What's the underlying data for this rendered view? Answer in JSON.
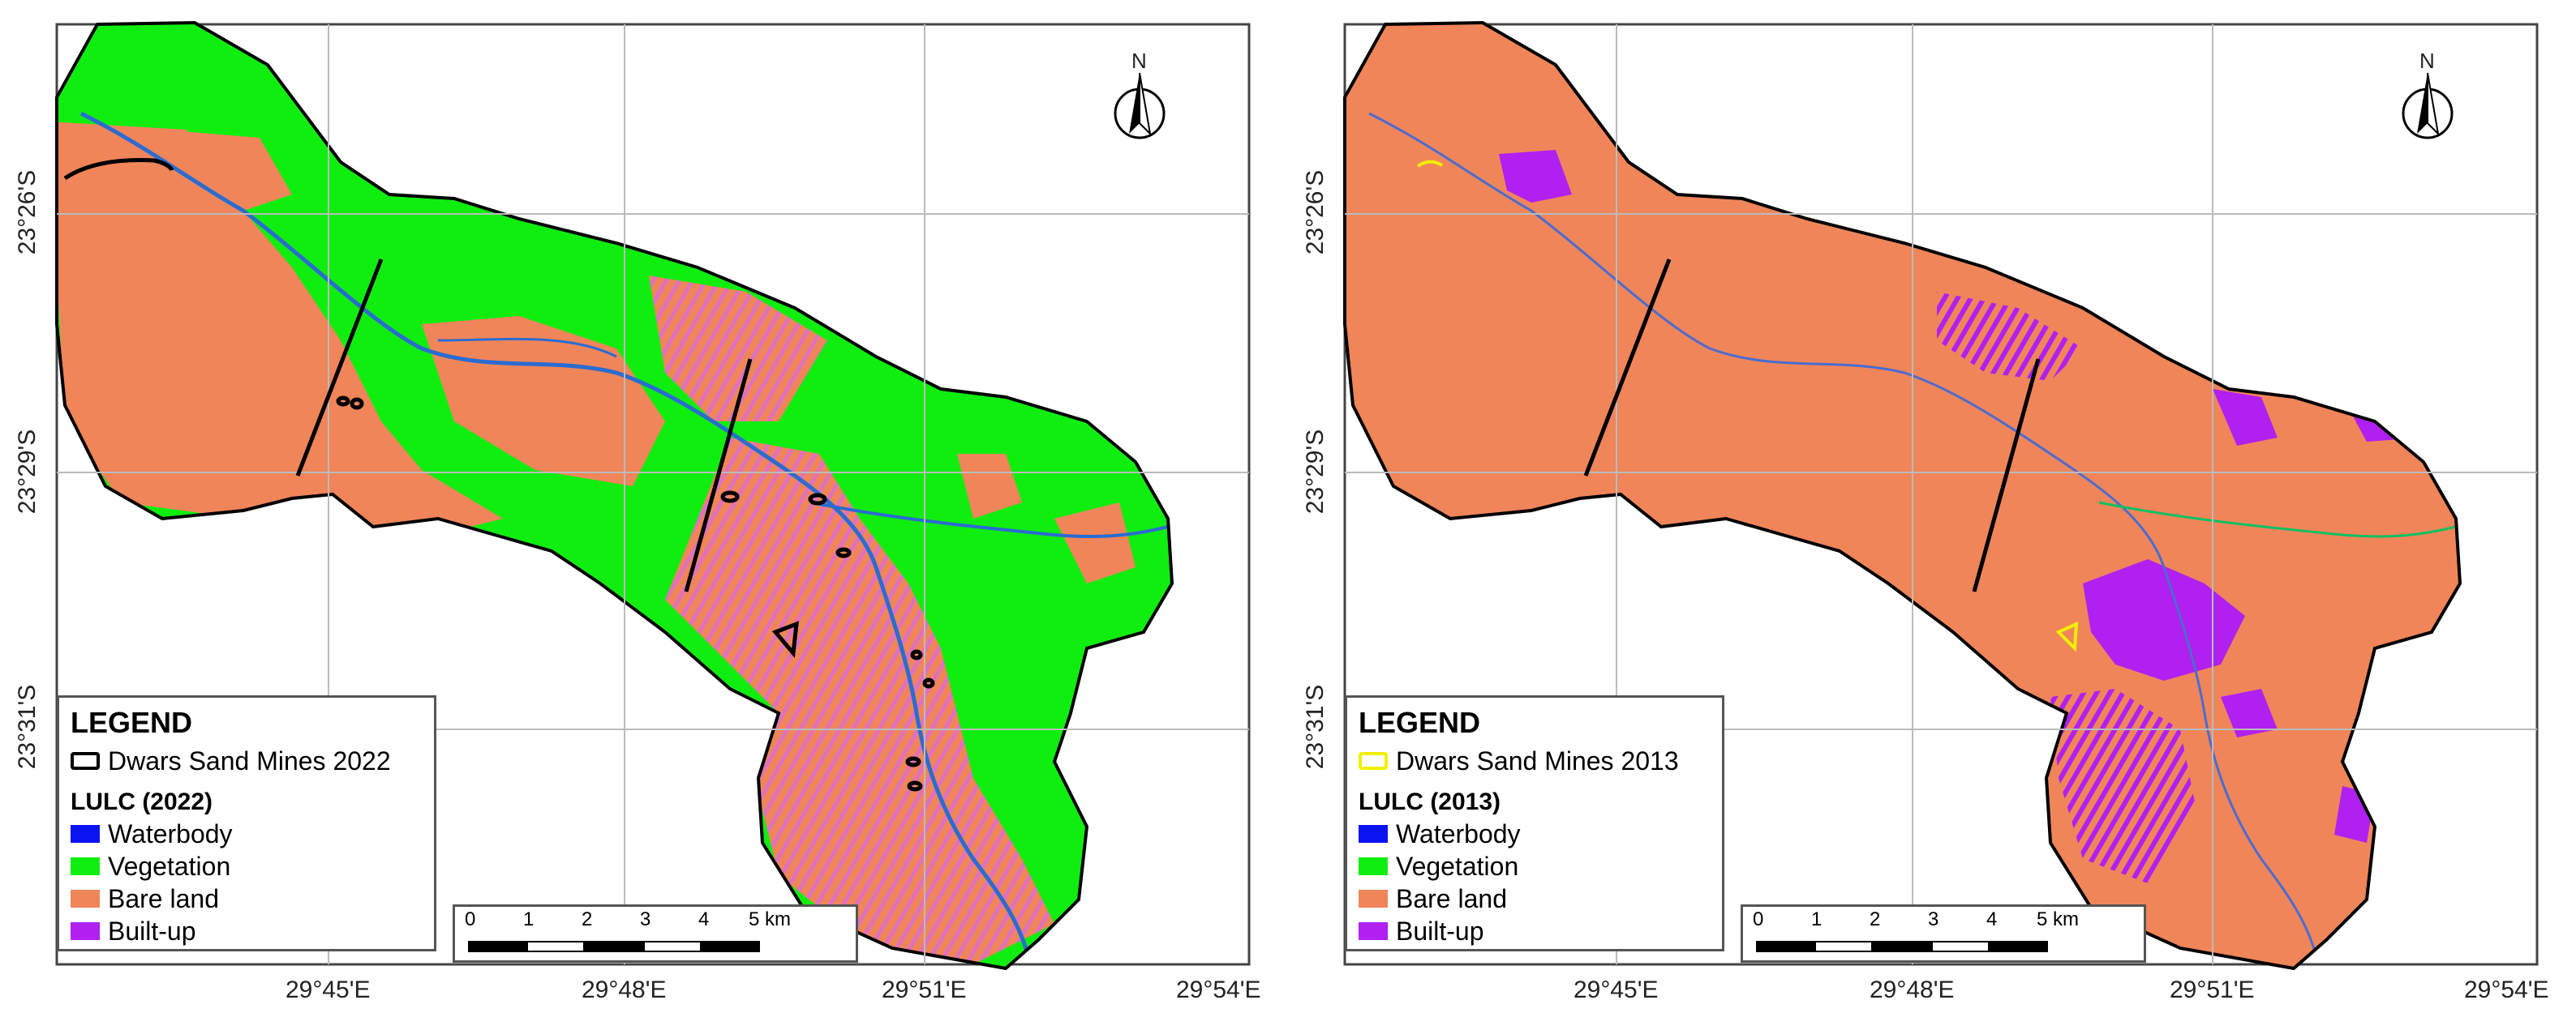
{
  "colors": {
    "waterbody": "#0a14f0",
    "vegetation": "#10ee10",
    "bare_land": "#f0855a",
    "built_up": "#b020f0",
    "mine_2022": "#000000",
    "mine_2013": "#f0f000"
  },
  "north_label": "N",
  "grid": {
    "lat_labels": [
      "23°26'S",
      "23°29'S",
      "23°31'S"
    ],
    "lon_labels": [
      "29°45'E",
      "29°48'E",
      "29°51'E",
      "29°54'E"
    ]
  },
  "panels": [
    {
      "legend_title": "LEGEND",
      "mines_label": "Dwars Sand Mines 2022",
      "lulc_title": "LULC (2022)",
      "classes": [
        "Waterbody",
        "Vegetation",
        "Bare land",
        "Built-up"
      ],
      "scale_labels": [
        "0",
        "1",
        "2",
        "3",
        "4",
        "5 km"
      ]
    },
    {
      "legend_title": "LEGEND",
      "mines_label": "Dwars Sand Mines 2013",
      "lulc_title": "LULC (2013)",
      "classes": [
        "Waterbody",
        "Vegetation",
        "Bare land",
        "Built-up"
      ],
      "scale_labels": [
        "0",
        "1",
        "2",
        "3",
        "4",
        "5 km"
      ]
    }
  ]
}
